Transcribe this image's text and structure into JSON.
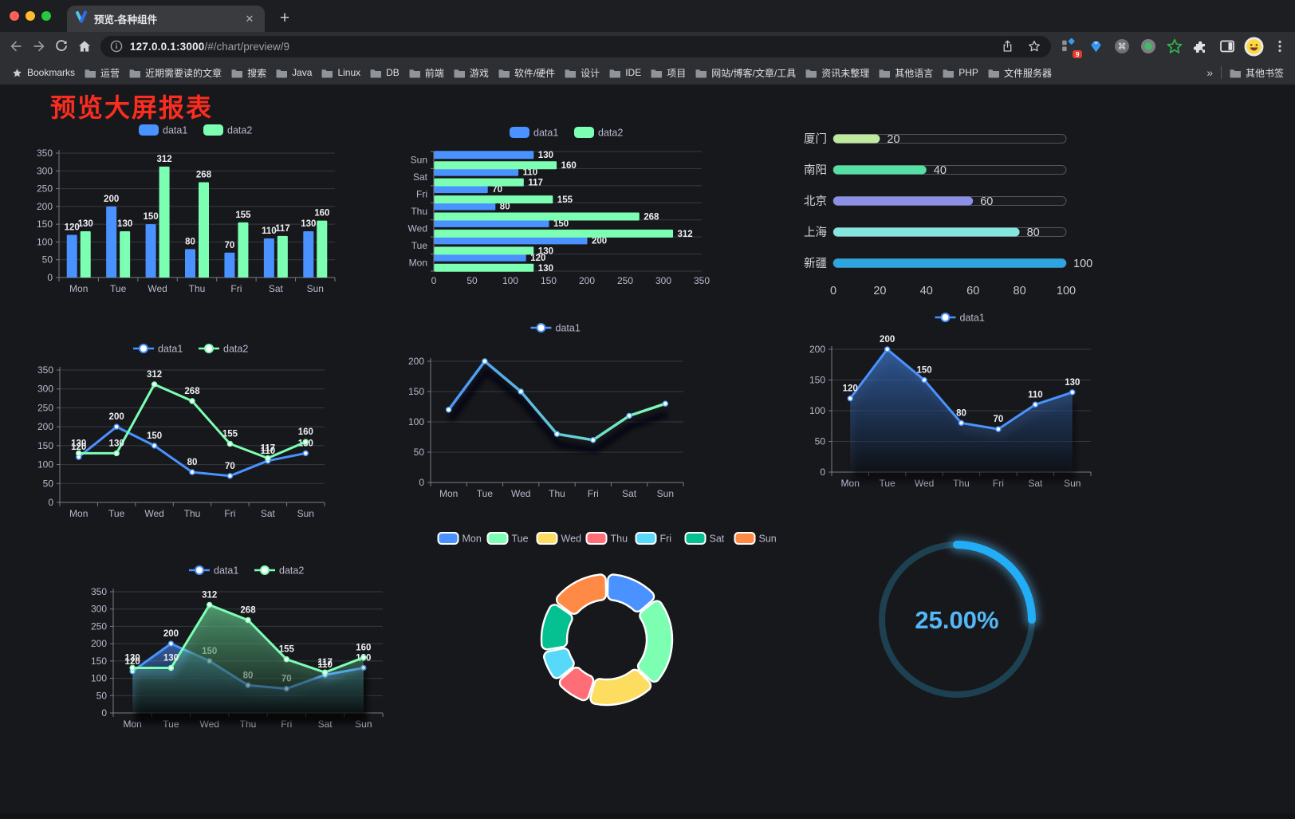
{
  "browser": {
    "traffic_lights": [
      "#ff5f57",
      "#febc2e",
      "#28c840"
    ],
    "tab_title": "预览-各种组件",
    "tab_close_label": "✕",
    "new_tab_label": "+",
    "url_host": "127.0.0.1:3000",
    "url_path": "/#/chart/preview/9",
    "extension_badge": "9",
    "bookmarks_label": "Bookmarks",
    "bookmark_folders": [
      "运营",
      "近期需要读的文章",
      "搜索",
      "Java",
      "Linux",
      "DB",
      "前端",
      "游戏",
      "软件/硬件",
      "设计",
      "IDE",
      "项目",
      "网站/博客/文章/工具",
      "资讯未整理",
      "其他语言",
      "PHP",
      "文件服务器"
    ],
    "bookmarks_overflow": "»",
    "other_bookmarks": "其他书签"
  },
  "page": {
    "title": "预览大屏报表",
    "title_color": "#fb2d1f",
    "background": "#17181c"
  },
  "chart_data": [
    {
      "type": "bar",
      "categories": [
        "Mon",
        "Tue",
        "Wed",
        "Thu",
        "Fri",
        "Sat",
        "Sun"
      ],
      "series": [
        {
          "name": "data1",
          "color": "#4992ff",
          "values": [
            120,
            200,
            150,
            80,
            70,
            110,
            130
          ]
        },
        {
          "name": "data2",
          "color": "#7cffb2",
          "values": [
            130,
            130,
            312,
            268,
            155,
            117,
            160
          ]
        }
      ],
      "ylim": [
        0,
        350
      ],
      "ystep": 50,
      "grid": true,
      "legend_position": "top",
      "value_labels": true
    },
    {
      "type": "hbar",
      "categories_top_to_bottom": [
        "Sun",
        "Sat",
        "Fri",
        "Thu",
        "Wed",
        "Tue",
        "Mon"
      ],
      "series": [
        {
          "name": "data1",
          "color": "#4992ff",
          "values": [
            130,
            110,
            70,
            80,
            150,
            200,
            120
          ]
        },
        {
          "name": "data2",
          "color": "#7cffb2",
          "values": [
            160,
            117,
            155,
            268,
            312,
            130,
            130
          ]
        }
      ],
      "xlim": [
        0,
        350
      ],
      "xstep": 50,
      "grid": true,
      "legend_position": "top",
      "value_labels": true
    },
    {
      "type": "progress",
      "categories": [
        "厦门",
        "南阳",
        "北京",
        "上海",
        "新疆"
      ],
      "values": [
        20,
        40,
        60,
        80,
        100
      ],
      "colors": [
        "#c0e9a0",
        "#55dfa4",
        "#8b90e6",
        "#84e6de",
        "#2ba6e2"
      ],
      "track_border": "#54555e",
      "xlim": [
        0,
        100
      ],
      "xticks": [
        0,
        20,
        40,
        60,
        80,
        100
      ]
    },
    {
      "type": "line",
      "categories": [
        "Mon",
        "Tue",
        "Wed",
        "Thu",
        "Fri",
        "Sat",
        "Sun"
      ],
      "series": [
        {
          "name": "data1",
          "color": "#4992ff",
          "values": [
            120,
            200,
            150,
            80,
            70,
            110,
            130
          ]
        },
        {
          "name": "data2",
          "color": "#7cffb2",
          "values": [
            130,
            130,
            312,
            268,
            155,
            117,
            160
          ]
        }
      ],
      "ylim": [
        0,
        350
      ],
      "ystep": 50,
      "grid": true,
      "legend_position": "top",
      "value_labels": true
    },
    {
      "type": "gradient-line",
      "categories": [
        "Mon",
        "Tue",
        "Wed",
        "Thu",
        "Fri",
        "Sat",
        "Sun"
      ],
      "series": [
        {
          "name": "data1",
          "values": [
            120,
            200,
            150,
            80,
            70,
            110,
            130
          ]
        }
      ],
      "line_gradient": [
        "#4992ff",
        "#7cffb2"
      ],
      "ylim": [
        0,
        200
      ],
      "ystep": 50,
      "grid": true,
      "legend_position": "top",
      "value_labels": false
    },
    {
      "type": "area",
      "categories": [
        "Mon",
        "Tue",
        "Wed",
        "Thu",
        "Fri",
        "Sat",
        "Sun"
      ],
      "series": [
        {
          "name": "data1",
          "color": "#4992ff",
          "values": [
            120,
            200,
            150,
            80,
            70,
            110,
            130
          ]
        }
      ],
      "ylim": [
        0,
        200
      ],
      "ystep": 50,
      "grid": true,
      "legend_position": "top",
      "value_labels": true
    },
    {
      "type": "area2",
      "categories": [
        "Mon",
        "Tue",
        "Wed",
        "Thu",
        "Fri",
        "Sat",
        "Sun"
      ],
      "series": [
        {
          "name": "data1",
          "color": "#4992ff",
          "values": [
            120,
            200,
            150,
            80,
            70,
            110,
            130
          ]
        },
        {
          "name": "data2",
          "color": "#7cffb2",
          "values": [
            130,
            130,
            312,
            268,
            155,
            117,
            160
          ]
        }
      ],
      "ylim": [
        0,
        350
      ],
      "ystep": 50,
      "grid": true,
      "legend_position": "top",
      "value_labels": true
    },
    {
      "type": "donut",
      "categories": [
        "Mon",
        "Tue",
        "Wed",
        "Thu",
        "Fri",
        "Sat",
        "Sun"
      ],
      "values": [
        120,
        200,
        150,
        80,
        70,
        110,
        130
      ],
      "colors": [
        "#4992ff",
        "#7cffb2",
        "#fddd60",
        "#ff6e76",
        "#58d9f9",
        "#05c091",
        "#ff8a45"
      ],
      "border_color": "#ffffff",
      "legend_position": "top"
    },
    {
      "type": "gauge",
      "value_label": "25.00%",
      "percent": 25,
      "color": "#22aef6",
      "track_color": "#1d4150",
      "text_color": "#54b7f7"
    }
  ]
}
